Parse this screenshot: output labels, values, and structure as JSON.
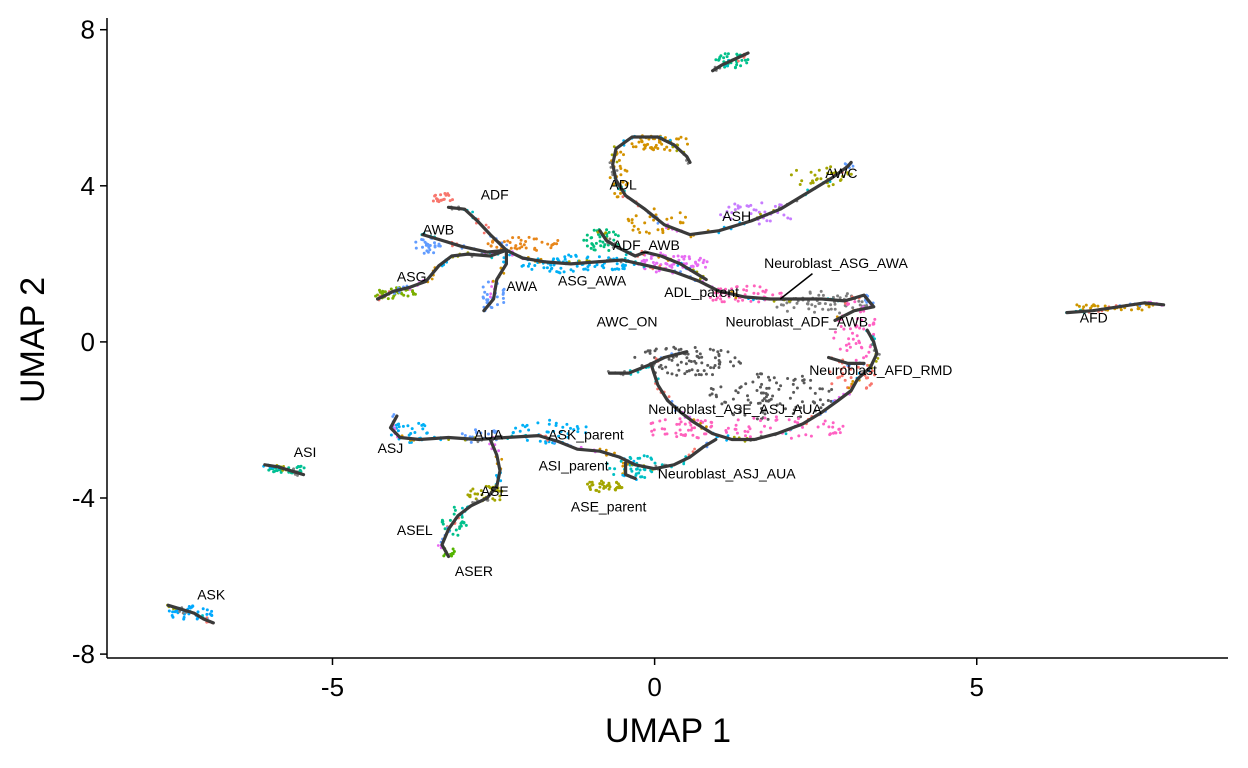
{
  "chart_data": {
    "type": "scatter",
    "title": "",
    "xlabel": "UMAP 1",
    "ylabel": "UMAP 2",
    "xlim": [
      -8.5,
      8.9
    ],
    "ylim": [
      -8.1,
      8.3
    ],
    "x_ticks": [
      -5,
      0,
      5
    ],
    "y_ticks": [
      -8,
      -4,
      0,
      4,
      8
    ],
    "x_tick_labels": [
      "-5",
      "0",
      "5"
    ],
    "y_tick_labels": [
      "-8",
      "-4",
      "0",
      "4",
      "8"
    ],
    "grid": false,
    "legend": "none",
    "trajectory_color": "#3a3a3a",
    "labels": [
      {
        "text": "ADF",
        "x": -2.7,
        "y": 3.65
      },
      {
        "text": "ADL",
        "x": -0.7,
        "y": 3.9
      },
      {
        "text": "AWC",
        "x": 2.65,
        "y": 4.2
      },
      {
        "text": "ASH",
        "x": 1.05,
        "y": 3.1
      },
      {
        "text": "AWB",
        "x": -3.6,
        "y": 2.75
      },
      {
        "text": "ADF_AWB",
        "x": -0.65,
        "y": 2.35
      },
      {
        "text": "Neuroblast_ASG_AWA",
        "x": 1.7,
        "y": 1.9
      },
      {
        "text": "ASG",
        "x": -4.0,
        "y": 1.55
      },
      {
        "text": "AWA",
        "x": -2.3,
        "y": 1.3
      },
      {
        "text": "ASG_AWA",
        "x": -1.5,
        "y": 1.45
      },
      {
        "text": "ADL_parent",
        "x": 0.15,
        "y": 1.15
      },
      {
        "text": "AWC_ON",
        "x": -0.9,
        "y": 0.4
      },
      {
        "text": "Neuroblast_ADF_AWB",
        "x": 1.1,
        "y": 0.4
      },
      {
        "text": "AFD",
        "x": 6.6,
        "y": 0.5
      },
      {
        "text": "Neuroblast_AFD_RMD",
        "x": 2.4,
        "y": -0.85
      },
      {
        "text": "Neuroblast_ASE_ASJ_AUA",
        "x": -0.1,
        "y": -1.85
      },
      {
        "text": "ASJ",
        "x": -4.3,
        "y": -2.85
      },
      {
        "text": "AUA",
        "x": -2.8,
        "y": -2.5
      },
      {
        "text": "ASK_parent",
        "x": -1.65,
        "y": -2.5
      },
      {
        "text": "ASI",
        "x": -5.6,
        "y": -2.95
      },
      {
        "text": "ASI_parent",
        "x": -1.8,
        "y": -3.3
      },
      {
        "text": "Neuroblast_ASJ_AUA",
        "x": 0.05,
        "y": -3.5
      },
      {
        "text": "ASE",
        "x": -2.7,
        "y": -3.95
      },
      {
        "text": "ASE_parent",
        "x": -1.3,
        "y": -4.35
      },
      {
        "text": "ASEL",
        "x": -4.0,
        "y": -4.95
      },
      {
        "text": "ASER",
        "x": -3.1,
        "y": -6.0
      },
      {
        "text": "ASK",
        "x": -7.1,
        "y": -6.6
      }
    ],
    "trajectory": [
      [
        [
          -3.2,
          3.45
        ],
        [
          -2.95,
          3.4
        ],
        [
          -2.75,
          3.1
        ],
        [
          -2.55,
          2.75
        ],
        [
          -2.3,
          2.35
        ],
        [
          -2.05,
          2.15
        ],
        [
          -1.7,
          2.05
        ],
        [
          -1.3,
          2.0
        ],
        [
          -0.9,
          2.05
        ],
        [
          -0.5,
          2.1
        ],
        [
          -0.1,
          1.95
        ],
        [
          0.3,
          1.8
        ],
        [
          0.7,
          1.55
        ],
        [
          1.0,
          1.3
        ],
        [
          1.4,
          1.15
        ],
        [
          1.8,
          1.1
        ],
        [
          2.2,
          1.1
        ],
        [
          2.6,
          1.1
        ],
        [
          2.95,
          1.05
        ],
        [
          3.25,
          1.2
        ],
        [
          3.4,
          0.9
        ],
        [
          3.1,
          0.8
        ],
        [
          2.8,
          0.55
        ]
      ],
      [
        [
          -3.6,
          2.75
        ],
        [
          -3.3,
          2.6
        ],
        [
          -3.0,
          2.45
        ],
        [
          -2.6,
          2.3
        ],
        [
          -2.3,
          2.35
        ]
      ],
      [
        [
          -4.3,
          1.1
        ],
        [
          -4.05,
          1.3
        ],
        [
          -3.8,
          1.4
        ],
        [
          -3.55,
          1.55
        ],
        [
          -3.35,
          1.95
        ],
        [
          -3.15,
          2.2
        ],
        [
          -2.9,
          2.25
        ],
        [
          -2.55,
          2.2
        ],
        [
          -2.3,
          2.35
        ]
      ],
      [
        [
          -2.65,
          0.8
        ],
        [
          -2.5,
          1.1
        ],
        [
          -2.45,
          1.6
        ],
        [
          -2.3,
          2.0
        ],
        [
          -2.3,
          2.35
        ]
      ],
      [
        [
          -0.15,
          2.3
        ],
        [
          0.1,
          2.2
        ],
        [
          0.4,
          2.0
        ],
        [
          0.6,
          1.8
        ],
        [
          0.8,
          1.6
        ]
      ],
      [
        [
          0.05,
          5.25
        ],
        [
          -0.35,
          5.25
        ],
        [
          -0.6,
          4.95
        ],
        [
          -0.65,
          4.55
        ],
        [
          -0.6,
          4.15
        ],
        [
          -0.45,
          3.75
        ],
        [
          -0.15,
          3.4
        ],
        [
          0.15,
          3.0
        ],
        [
          0.55,
          2.75
        ],
        [
          1.0,
          2.85
        ],
        [
          1.5,
          3.1
        ],
        [
          1.95,
          3.4
        ],
        [
          2.35,
          3.8
        ],
        [
          2.75,
          4.2
        ],
        [
          3.0,
          4.5
        ],
        [
          3.05,
          4.6
        ]
      ],
      [
        [
          0.05,
          5.25
        ],
        [
          0.3,
          5.05
        ],
        [
          0.5,
          4.75
        ],
        [
          0.55,
          4.6
        ]
      ],
      [
        [
          -0.85,
          2.85
        ],
        [
          -0.75,
          2.6
        ],
        [
          -0.55,
          2.4
        ],
        [
          -0.3,
          2.2
        ],
        [
          -0.15,
          2.3
        ]
      ],
      [
        [
          -0.7,
          -0.8
        ],
        [
          -0.4,
          -0.8
        ],
        [
          -0.1,
          -0.6
        ],
        [
          0.15,
          -0.4
        ],
        [
          0.5,
          -0.25
        ]
      ],
      [
        [
          -0.05,
          -0.6
        ],
        [
          0.05,
          -1.1
        ],
        [
          0.2,
          -1.5
        ],
        [
          0.4,
          -1.8
        ],
        [
          0.6,
          -2.05
        ],
        [
          0.9,
          -2.35
        ],
        [
          1.2,
          -2.5
        ],
        [
          1.55,
          -2.5
        ],
        [
          1.9,
          -2.35
        ],
        [
          2.3,
          -2.1
        ],
        [
          2.6,
          -1.8
        ],
        [
          2.85,
          -1.5
        ],
        [
          3.05,
          -1.25
        ],
        [
          3.15,
          -0.95
        ],
        [
          3.35,
          -0.65
        ],
        [
          3.45,
          -0.3
        ],
        [
          3.4,
          0.0
        ],
        [
          3.3,
          0.3
        ]
      ],
      [
        [
          2.7,
          -0.4
        ],
        [
          3.0,
          -0.55
        ],
        [
          3.25,
          -0.55
        ]
      ],
      [
        [
          -4.0,
          -1.9
        ],
        [
          -4.1,
          -2.2
        ],
        [
          -3.95,
          -2.45
        ],
        [
          -3.65,
          -2.5
        ],
        [
          -3.2,
          -2.45
        ],
        [
          -2.75,
          -2.5
        ],
        [
          -2.3,
          -2.45
        ],
        [
          -1.8,
          -2.4
        ],
        [
          -1.5,
          -2.55
        ],
        [
          -1.2,
          -2.75
        ],
        [
          -0.85,
          -2.8
        ],
        [
          -0.55,
          -2.95
        ],
        [
          -0.3,
          -3.15
        ],
        [
          0.0,
          -3.25
        ],
        [
          0.3,
          -3.15
        ],
        [
          0.55,
          -2.95
        ],
        [
          0.75,
          -2.7
        ],
        [
          0.95,
          -2.5
        ]
      ],
      [
        [
          -2.55,
          -2.5
        ],
        [
          -2.45,
          -2.9
        ],
        [
          -2.4,
          -3.3
        ],
        [
          -2.45,
          -3.7
        ],
        [
          -2.6,
          -4.0
        ],
        [
          -2.85,
          -4.2
        ],
        [
          -3.05,
          -4.45
        ],
        [
          -3.2,
          -4.8
        ],
        [
          -3.3,
          -5.2
        ],
        [
          -3.2,
          -5.5
        ]
      ],
      [
        [
          -0.45,
          -3.1
        ],
        [
          -0.45,
          -3.4
        ],
        [
          -0.3,
          -3.5
        ]
      ],
      [
        [
          -6.05,
          -3.15
        ],
        [
          -5.85,
          -3.2
        ],
        [
          -5.65,
          -3.3
        ],
        [
          -5.45,
          -3.4
        ]
      ],
      [
        [
          -7.55,
          -6.75
        ],
        [
          -7.35,
          -6.85
        ],
        [
          -7.15,
          -6.95
        ],
        [
          -7.0,
          -7.1
        ],
        [
          -6.85,
          -7.2
        ]
      ],
      [
        [
          0.9,
          6.95
        ],
        [
          1.05,
          7.1
        ],
        [
          1.25,
          7.25
        ],
        [
          1.45,
          7.4
        ]
      ],
      [
        [
          6.4,
          0.75
        ],
        [
          6.8,
          0.8
        ],
        [
          7.2,
          0.9
        ],
        [
          7.6,
          1.0
        ],
        [
          7.9,
          0.95
        ]
      ]
    ],
    "clusters": [
      {
        "cx": -3.3,
        "cy": 3.7,
        "rx": 0.2,
        "ry": 0.12,
        "n": 18,
        "color": "#f8766d"
      },
      {
        "cx": -2.0,
        "cy": 2.5,
        "rx": 0.6,
        "ry": 0.2,
        "n": 40,
        "color": "#e7861b"
      },
      {
        "cx": 0.1,
        "cy": 5.1,
        "rx": 0.5,
        "ry": 0.2,
        "n": 45,
        "color": "#d39200"
      },
      {
        "cx": -0.55,
        "cy": 4.3,
        "rx": 0.15,
        "ry": 0.6,
        "n": 30,
        "color": "#d39200"
      },
      {
        "cx": 0.0,
        "cy": 3.1,
        "rx": 0.5,
        "ry": 0.35,
        "n": 30,
        "color": "#d39200"
      },
      {
        "cx": 2.6,
        "cy": 4.25,
        "rx": 0.5,
        "ry": 0.3,
        "n": 30,
        "color": "#a3a500"
      },
      {
        "cx": 1.6,
        "cy": 3.3,
        "rx": 0.6,
        "ry": 0.3,
        "n": 35,
        "color": "#c77cff"
      },
      {
        "cx": -3.5,
        "cy": 2.5,
        "rx": 0.25,
        "ry": 0.25,
        "n": 25,
        "color": "#619cff"
      },
      {
        "cx": -0.8,
        "cy": 2.6,
        "rx": 0.3,
        "ry": 0.3,
        "n": 40,
        "color": "#00bf7d"
      },
      {
        "cx": -1.2,
        "cy": 2.0,
        "rx": 0.9,
        "ry": 0.25,
        "n": 80,
        "color": "#00b0f6"
      },
      {
        "cx": 0.3,
        "cy": 2.0,
        "rx": 0.6,
        "ry": 0.25,
        "n": 60,
        "color": "#e76bf3"
      },
      {
        "cx": -4.05,
        "cy": 1.25,
        "rx": 0.35,
        "ry": 0.15,
        "n": 35,
        "color": "#7cae00"
      },
      {
        "cx": -2.5,
        "cy": 1.2,
        "rx": 0.2,
        "ry": 0.4,
        "n": 25,
        "color": "#619cff"
      },
      {
        "cx": 1.4,
        "cy": 1.2,
        "rx": 0.6,
        "ry": 0.25,
        "n": 50,
        "color": "#ff62bc"
      },
      {
        "cx": 2.6,
        "cy": 1.0,
        "rx": 0.8,
        "ry": 0.3,
        "n": 60,
        "color": "#7f7f7f"
      },
      {
        "cx": 3.1,
        "cy": 0.3,
        "rx": 0.35,
        "ry": 0.8,
        "n": 55,
        "color": "#ff61c3"
      },
      {
        "cx": 7.2,
        "cy": 0.9,
        "rx": 0.8,
        "ry": 0.1,
        "n": 40,
        "color": "#cd9600"
      },
      {
        "cx": 0.5,
        "cy": -0.5,
        "rx": 0.9,
        "ry": 0.4,
        "n": 90,
        "color": "#595959"
      },
      {
        "cx": 1.8,
        "cy": -1.4,
        "rx": 1.0,
        "ry": 0.6,
        "n": 100,
        "color": "#595959"
      },
      {
        "cx": 2.0,
        "cy": -2.2,
        "rx": 1.0,
        "ry": 0.3,
        "n": 50,
        "color": "#ff61c3"
      },
      {
        "cx": 3.1,
        "cy": -0.9,
        "rx": 0.4,
        "ry": 0.4,
        "n": 30,
        "color": "#f8766d"
      },
      {
        "cx": 0.4,
        "cy": -2.2,
        "rx": 0.6,
        "ry": 0.3,
        "n": 45,
        "color": "#ff62bc"
      },
      {
        "cx": -3.8,
        "cy": -2.3,
        "rx": 0.3,
        "ry": 0.3,
        "n": 25,
        "color": "#00b0f6"
      },
      {
        "cx": -1.6,
        "cy": -2.3,
        "rx": 0.6,
        "ry": 0.3,
        "n": 40,
        "color": "#00b0f6"
      },
      {
        "cx": -2.7,
        "cy": -2.4,
        "rx": 0.3,
        "ry": 0.2,
        "n": 20,
        "color": "#619cff"
      },
      {
        "cx": -0.3,
        "cy": -3.2,
        "rx": 0.5,
        "ry": 0.3,
        "n": 40,
        "color": "#00bfc4"
      },
      {
        "cx": -0.8,
        "cy": -3.7,
        "rx": 0.3,
        "ry": 0.15,
        "n": 35,
        "color": "#a3a500"
      },
      {
        "cx": -2.6,
        "cy": -3.9,
        "rx": 0.3,
        "ry": 0.2,
        "n": 30,
        "color": "#a3a500"
      },
      {
        "cx": -3.1,
        "cy": -4.6,
        "rx": 0.2,
        "ry": 0.4,
        "n": 25,
        "color": "#00c08b"
      },
      {
        "cx": -3.2,
        "cy": -5.4,
        "rx": 0.1,
        "ry": 0.2,
        "n": 15,
        "color": "#53b400"
      },
      {
        "cx": -5.75,
        "cy": -3.25,
        "rx": 0.35,
        "ry": 0.12,
        "n": 30,
        "color": "#00c094"
      },
      {
        "cx": -7.2,
        "cy": -6.95,
        "rx": 0.35,
        "ry": 0.2,
        "n": 40,
        "color": "#00a9ff"
      },
      {
        "cx": 1.2,
        "cy": 7.2,
        "rx": 0.3,
        "ry": 0.2,
        "n": 30,
        "color": "#00c08b"
      }
    ]
  }
}
